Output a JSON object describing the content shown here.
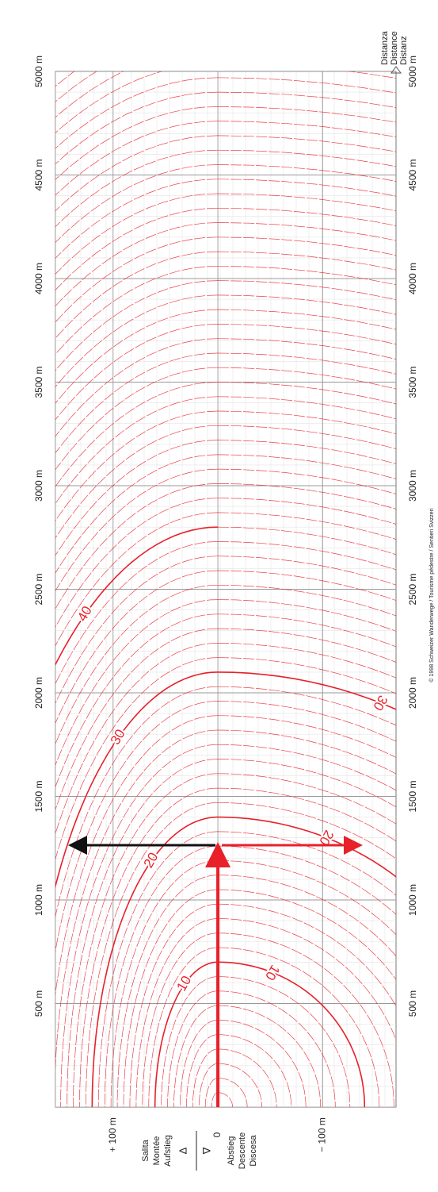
{
  "chart_data": {
    "type": "nomogram",
    "distance_lim": [
      0,
      5000
    ],
    "distance_ticks": [
      {
        "value": 500,
        "label": "500 m"
      },
      {
        "value": 1000,
        "label": "1000 m"
      },
      {
        "value": 1500,
        "label": "1500 m"
      },
      {
        "value": 2000,
        "label": "2000 m"
      },
      {
        "value": 2500,
        "label": "2500 m"
      },
      {
        "value": 3000,
        "label": "3000 m"
      },
      {
        "value": 3500,
        "label": "3500 m"
      },
      {
        "value": 4000,
        "label": "4000 m"
      },
      {
        "value": 4500,
        "label": "4500 m"
      },
      {
        "value": 5000,
        "label": "5000 m"
      }
    ],
    "height_lim": [
      155,
      -170
    ],
    "height_ticks": [
      {
        "value": 100,
        "label": "+ 100 m"
      },
      0,
      {
        "value": -100,
        "label": "− 100 m"
      }
    ],
    "ascent_label": [
      "Salita",
      "Montée",
      "Aufstieg"
    ],
    "descent_label": [
      "Abstieg",
      "Descente",
      "Discesa"
    ],
    "distance_label": [
      "Distanza",
      "Distance",
      "Distanz"
    ],
    "ascent_contours": [
      10,
      20,
      30,
      40
    ],
    "descent_contours": [
      10,
      20,
      30
    ],
    "contour_color": "#e8202a",
    "credit": "© 1998 Schweizer Wanderwege / Tourisme pédestre / Sentieri Svizzeri"
  }
}
